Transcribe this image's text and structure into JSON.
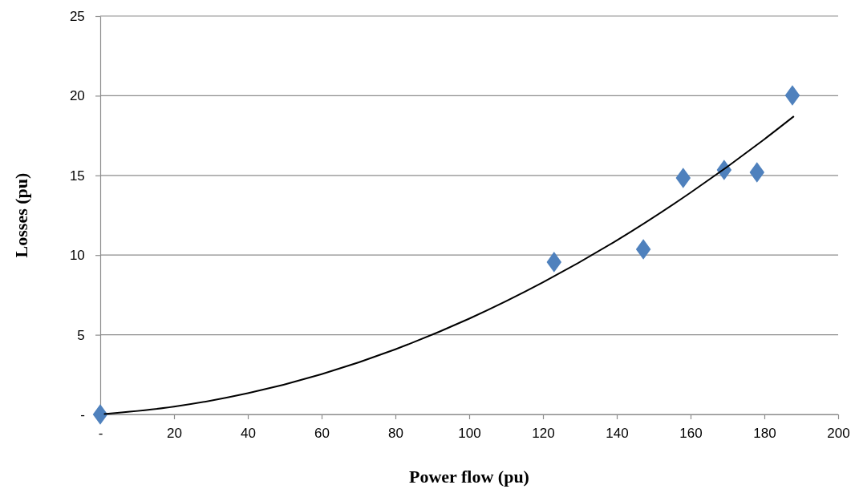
{
  "chart_data": {
    "type": "scatter",
    "xlabel": "Power flow (pu)",
    "ylabel": "Losses (pu)",
    "xlim": [
      0,
      200
    ],
    "ylim": [
      0,
      25
    ],
    "xticks": [
      {
        "value": 0,
        "label": "-"
      },
      20,
      40,
      60,
      80,
      100,
      120,
      140,
      160,
      180,
      200
    ],
    "yticks": [
      {
        "value": 0,
        "label": "-"
      },
      5,
      10,
      15,
      20,
      25
    ],
    "grid": "y",
    "marker": "diamond",
    "series": [
      {
        "color": "#4f81bd",
        "x": [
          0,
          123,
          147.2,
          158,
          169.1,
          178,
          187.6
        ],
        "values": [
          0,
          9.56,
          10.36,
          14.84,
          15.34,
          15.19,
          20.02
        ]
      },
      {
        "type": "line",
        "color": "#000000",
        "line_style": "solid",
        "marker": "none",
        "x": [
          1,
          20,
          40,
          60,
          80,
          100,
          120,
          140,
          160,
          180,
          188
        ],
        "values": [
          0.02,
          0.49,
          1.33,
          2.53,
          4.09,
          6.01,
          8.29,
          10.92,
          13.92,
          17.27,
          18.71
        ]
      }
    ]
  }
}
